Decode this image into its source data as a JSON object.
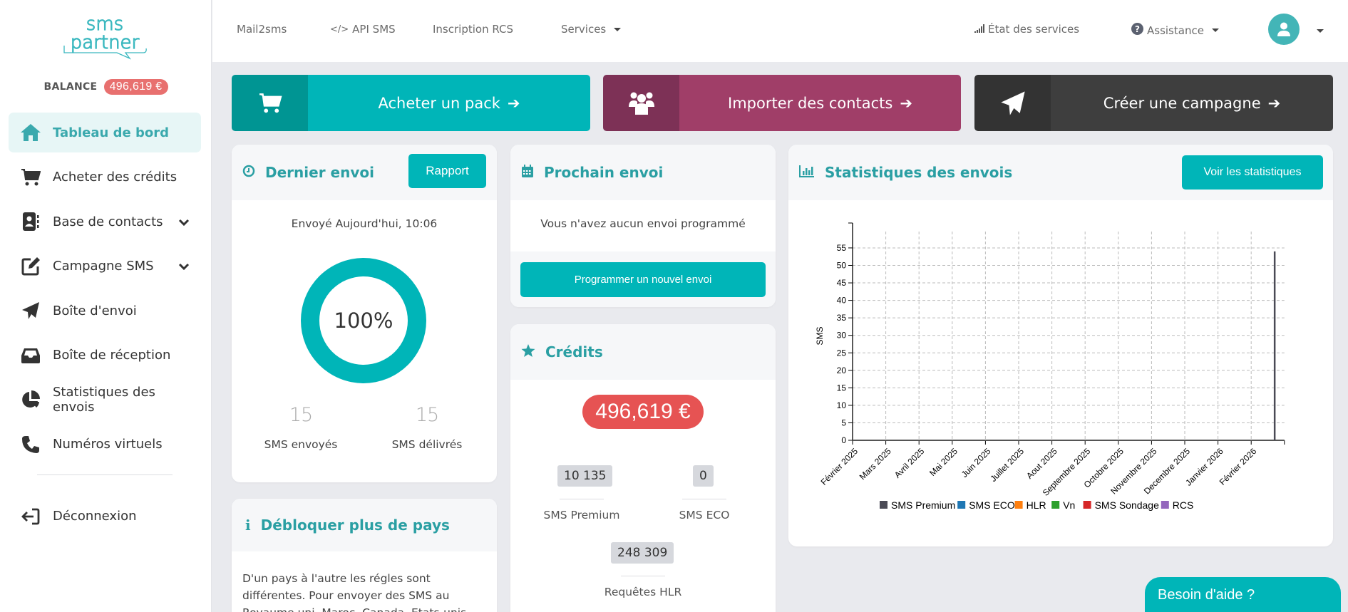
{
  "brand": {
    "name_line1": "sms",
    "name_line2": "partner",
    "color": "#3ab8bf"
  },
  "sidebar": {
    "balance_label": "BALANCE",
    "balance_value": "496,619 €",
    "items": [
      {
        "label": "Tableau de bord",
        "icon": "home-icon",
        "active": true
      },
      {
        "label": "Acheter des crédits",
        "icon": "cart-icon"
      },
      {
        "label": "Base de contacts",
        "icon": "address-book-icon",
        "expandable": true
      },
      {
        "label": "Campagne SMS",
        "icon": "edit-icon",
        "expandable": true
      },
      {
        "label": "Boîte d'envoi",
        "icon": "paper-plane-icon"
      },
      {
        "label": "Boîte de réception",
        "icon": "inbox-icon"
      },
      {
        "label": "Statistiques des envois",
        "icon": "pie-chart-icon"
      },
      {
        "label": "Numéros virtuels",
        "icon": "phone-icon"
      }
    ],
    "logout_label": "Déconnexion"
  },
  "header": {
    "links": [
      {
        "label": "Mail2sms"
      },
      {
        "label": "API SMS",
        "icon": "code-icon"
      },
      {
        "label": "Inscription RCS"
      },
      {
        "label": "Services",
        "dropdown": true
      }
    ],
    "status_label": "État des services",
    "assistance_label": "Assistance"
  },
  "banners": [
    {
      "label": "Acheter un pack",
      "icon": "cart-icon",
      "color_dark": "#009593",
      "color": "#00b5b8"
    },
    {
      "label": "Importer des contacts",
      "icon": "users-icon",
      "color_dark": "#7d3156",
      "color": "#a03e68"
    },
    {
      "label": "Créer une campagne",
      "icon": "paper-plane-icon",
      "color_dark": "#333333",
      "color": "#3e3e3e"
    }
  ],
  "last_send": {
    "title": "Dernier envoi",
    "report_button": "Rapport",
    "sent_at": "Envoyé Aujourd'hui, 10:06",
    "percent": "100%",
    "sent_count": "15",
    "sent_label": "SMS envoyés",
    "delivered_count": "15",
    "delivered_label": "SMS délivrés"
  },
  "next_send": {
    "title": "Prochain envoi",
    "empty_message": "Vous n'avez aucun envoi programmé",
    "schedule_button": "Programmer un nouvel envoi"
  },
  "credits": {
    "title": "Crédits",
    "amount": "496,619 €",
    "premium_value": "10 135",
    "premium_label": "SMS Premium",
    "eco_value": "0",
    "eco_label": "SMS ECO",
    "hlr_value": "248 309",
    "hlr_label": "Requêtes HLR"
  },
  "unlock": {
    "title": "Débloquer plus de pays",
    "text": "D'un pays à l'autre les régles sont différentes. Pour envoyer des SMS au Royaume uni, Maroc, Canada, Etats-unis vous aurez besoin"
  },
  "stats": {
    "title": "Statistiques des envois",
    "button": "Voir les statistiques"
  },
  "chart_data": {
    "type": "bar",
    "title": "",
    "xlabel": "",
    "ylabel": "SMS",
    "ylim": [
      0,
      58
    ],
    "yticks": [
      0,
      5,
      10,
      15,
      20,
      25,
      30,
      35,
      40,
      45,
      50,
      55
    ],
    "grid": true,
    "legend_position": "bottom",
    "categories": [
      "Février 2025",
      "Mars 2025",
      "Avril 2025",
      "Mai 2025",
      "Juin 2025",
      "Juillet 2025",
      "Aout 2025",
      "Septembre 2025",
      "Octobre 2025",
      "Novembre 2025",
      "Decembre 2025",
      "Janvier 2026",
      "Février 2026"
    ],
    "series": [
      {
        "name": "SMS Premium",
        "color": "#4a4a55",
        "values": [
          0,
          0,
          0,
          0,
          0,
          0,
          0,
          0,
          0,
          0,
          0,
          0,
          54
        ]
      },
      {
        "name": "SMS ECO",
        "color": "#1f77b4",
        "values": [
          0,
          0,
          0,
          0,
          0,
          0,
          0,
          0,
          0,
          0,
          0,
          0,
          0
        ]
      },
      {
        "name": "HLR",
        "color": "#ff7f0e",
        "values": [
          0,
          0,
          0,
          0,
          0,
          0,
          0,
          0,
          0,
          0,
          0,
          0,
          0
        ]
      },
      {
        "name": "Vn",
        "color": "#2ca02c",
        "values": [
          0,
          0,
          0,
          0,
          0,
          0,
          0,
          0,
          0,
          0,
          0,
          0,
          0
        ]
      },
      {
        "name": "SMS Sondage",
        "color": "#d62728",
        "values": [
          0,
          0,
          0,
          0,
          0,
          0,
          0,
          0,
          0,
          0,
          0,
          0,
          0
        ]
      },
      {
        "name": "RCS",
        "color": "#9467bd",
        "values": [
          0,
          0,
          0,
          0,
          0,
          0,
          0,
          0,
          0,
          0,
          0,
          0,
          0
        ]
      }
    ]
  },
  "help_widget": {
    "label": "Besoin d'aide ?"
  }
}
